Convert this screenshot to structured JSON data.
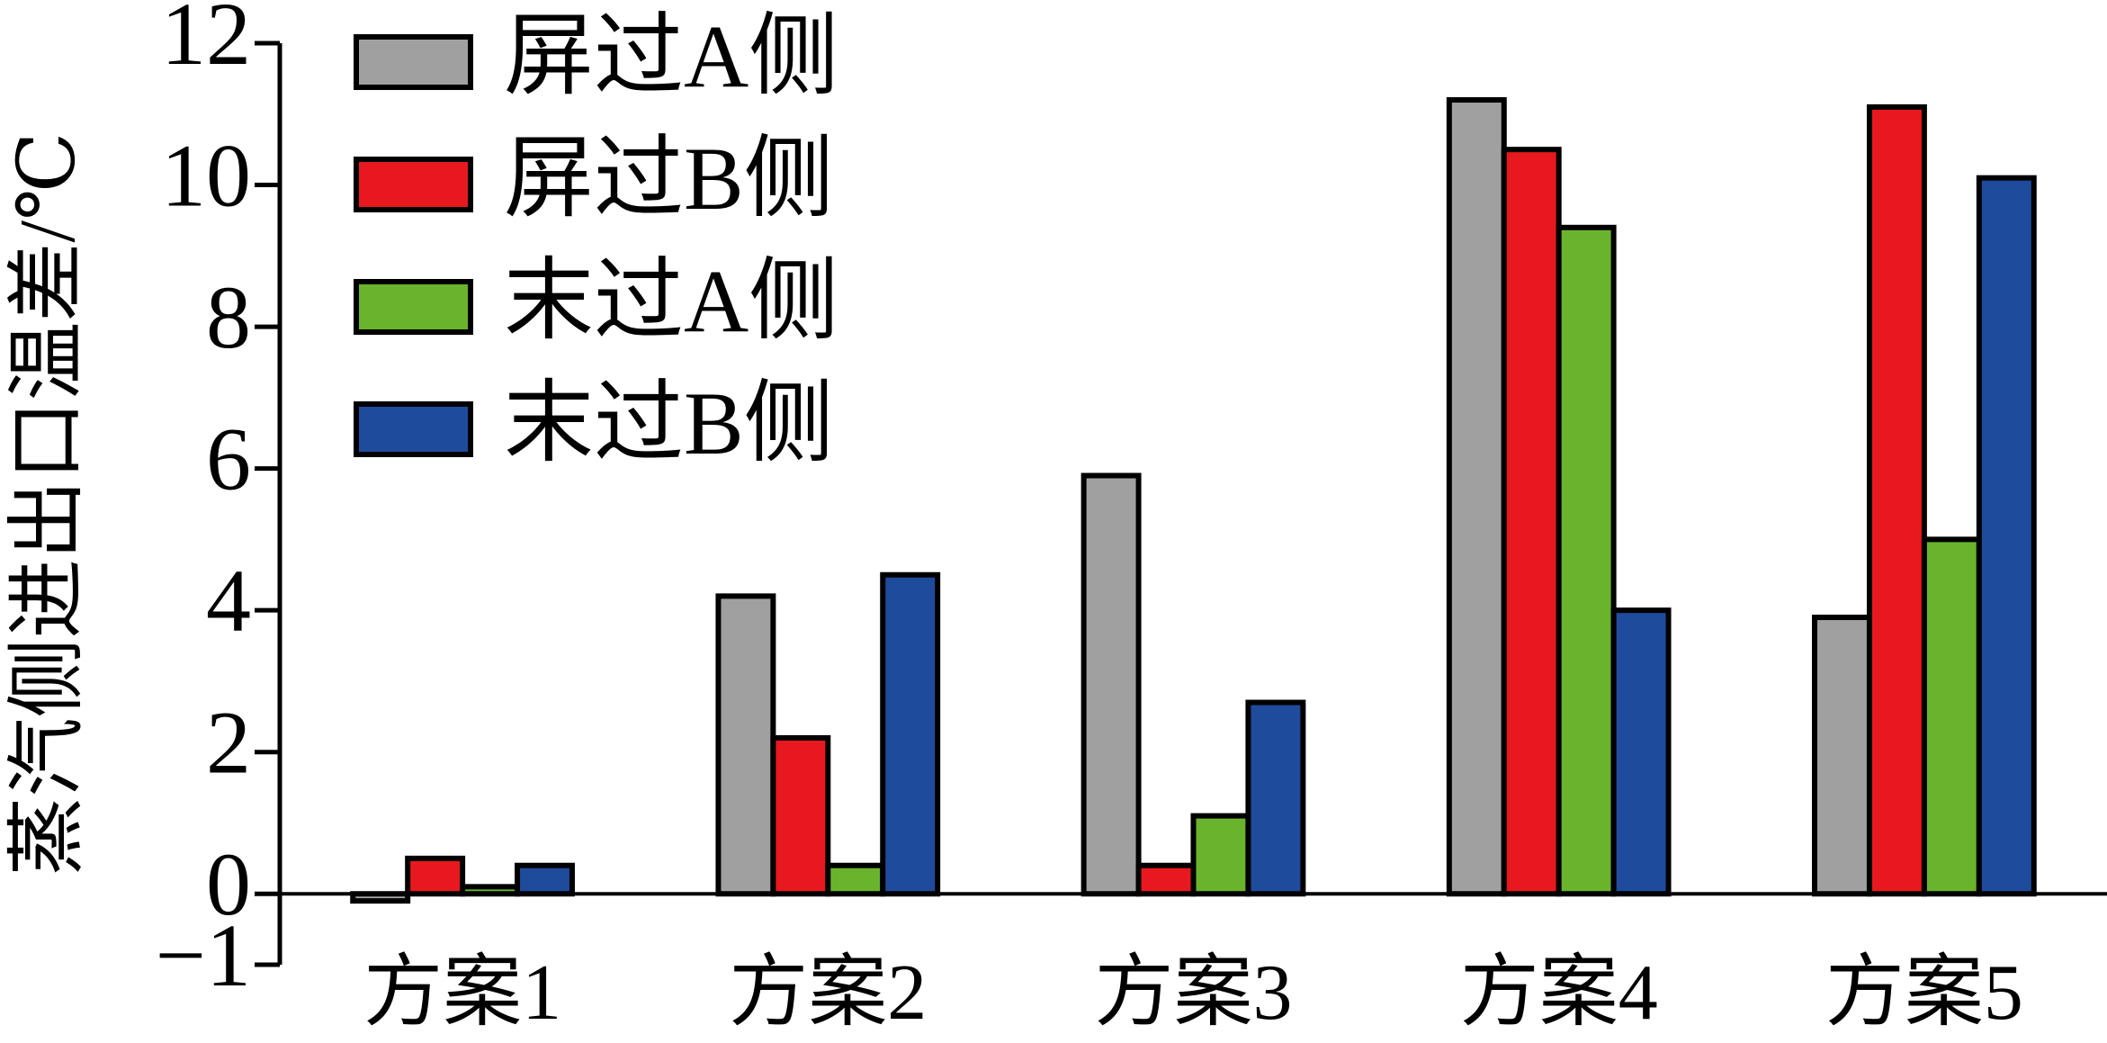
{
  "chart_data": {
    "type": "bar",
    "y_label": "蒸汽侧进出口温差/℃",
    "categories": [
      "方案1",
      "方案2",
      "方案3",
      "方案4",
      "方案5"
    ],
    "series": [
      {
        "name": "屏过A侧",
        "color": "#a0a0a0",
        "values": [
          -0.1,
          4.2,
          5.9,
          11.2,
          3.9
        ]
      },
      {
        "name": "屏过B侧",
        "color": "#e8191e",
        "values": [
          0.5,
          2.2,
          0.4,
          10.5,
          11.1
        ]
      },
      {
        "name": "末过A侧",
        "color": "#6ab42d",
        "values": [
          0.1,
          0.4,
          1.1,
          9.4,
          5.0
        ]
      },
      {
        "name": "末过B侧",
        "color": "#1f4b9c",
        "values": [
          0.4,
          4.5,
          2.7,
          4.0,
          10.1
        ]
      }
    ],
    "ylim": [
      -1,
      12
    ],
    "yticks": [
      {
        "value": -1,
        "label": "−1"
      },
      0,
      2,
      4,
      6,
      8,
      10,
      12
    ],
    "legend": "upper-left"
  }
}
